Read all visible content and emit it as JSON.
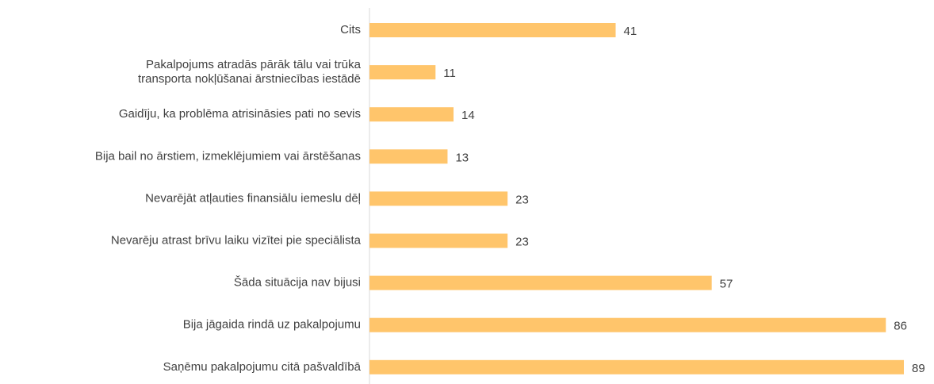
{
  "chart_data": {
    "type": "bar",
    "orientation": "horizontal",
    "categories": [
      "Cits",
      "Pakalpojums atradās pārāk tālu vai trūka\ntransporta nokļūšanai ārstniecības iestādē",
      "Gaidīju, ka problēma atrisināsies pati no sevis",
      "Bija bail no ārstiem, izmeklējumiem vai ārstēšanas",
      "Nevarējāt atļauties finansiālu iemeslu dēļ",
      "Nevarēju atrast brīvu laiku vizītei pie speciālista",
      "Šāda situācija nav bijusi",
      "Bija jāgaida rindā uz pakalpojumu",
      "Saņēmu pakalpojumu citā pašvaldībā"
    ],
    "values": [
      41,
      11,
      14,
      13,
      23,
      23,
      57,
      86,
      89
    ],
    "color": "#ffc56b"
  }
}
